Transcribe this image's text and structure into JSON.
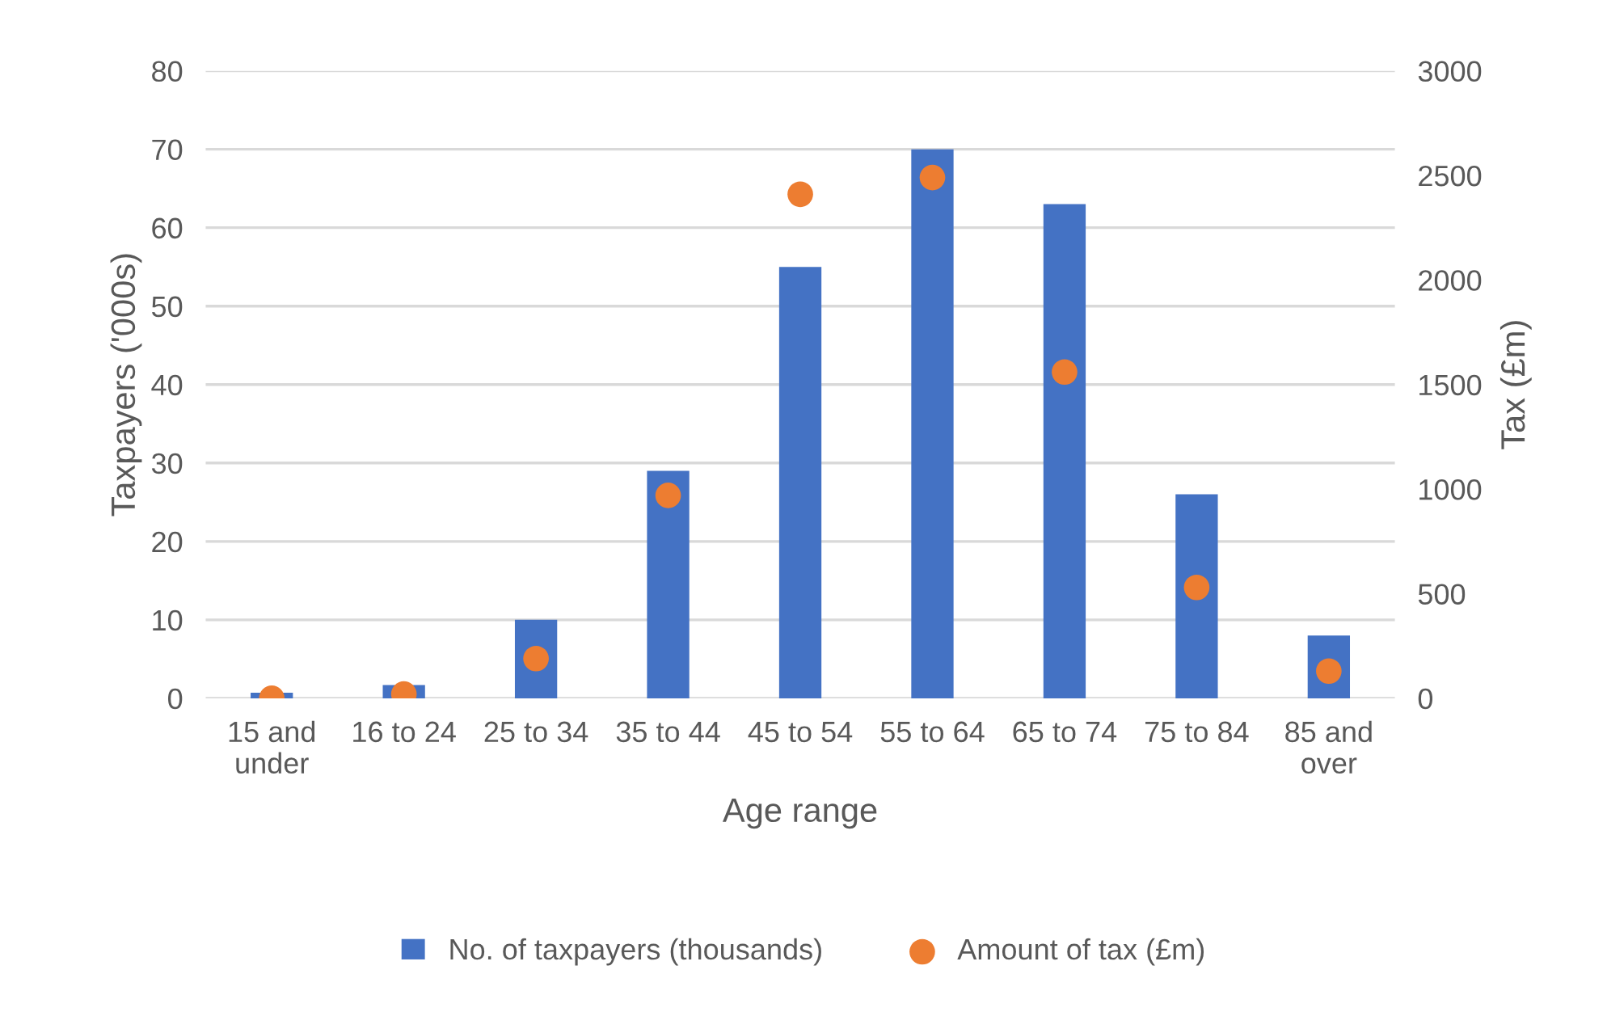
{
  "chart_data": {
    "type": "bar",
    "xlabel": "Age range",
    "ylabel": "Taxpayers ('000s)",
    "y2label": "Tax (£m)",
    "categories": [
      "15 and\nunder",
      "16 to 24",
      "25 to 34",
      "35 to 44",
      "45 to 54",
      "55 to 64",
      "65 to 74",
      "75 to 84",
      "85 and\nover"
    ],
    "series": [
      {
        "name": "No. of taxpayers (thousands)",
        "color": "#4472c4",
        "values": [
          0.7,
          1.7,
          10,
          29,
          55,
          70,
          63,
          26,
          8
        ]
      },
      {
        "name": "Amount of tax (£m)",
        "type": "scatter",
        "axis": "y2",
        "color": "#ed7d31",
        "marker": "circle",
        "values": [
          0,
          20,
          190,
          970,
          2410,
          2490,
          1560,
          530,
          130
        ]
      }
    ],
    "ylim": [
      0,
      80
    ],
    "yticks": [
      0,
      10,
      20,
      30,
      40,
      50,
      60,
      70,
      80
    ],
    "y2lim": [
      0,
      3000
    ],
    "y2ticks": [
      0,
      500,
      1000,
      1500,
      2000,
      2500,
      3000
    ],
    "grid": "y",
    "legend": "bottom"
  }
}
